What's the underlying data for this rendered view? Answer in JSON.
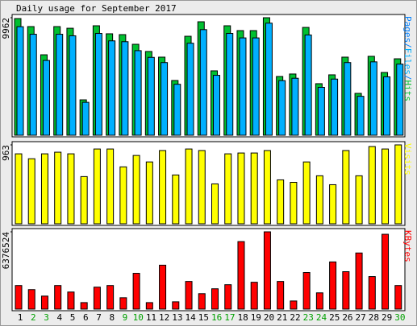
{
  "chart_data": {
    "type": "bar",
    "title": "Daily usage for September 2017",
    "categories": [
      "1",
      "2",
      "3",
      "4",
      "5",
      "6",
      "7",
      "8",
      "9",
      "10",
      "11",
      "12",
      "13",
      "14",
      "15",
      "16",
      "17",
      "18",
      "19",
      "20",
      "21",
      "22",
      "23",
      "24",
      "25",
      "26",
      "27",
      "28",
      "29",
      "30"
    ],
    "category_colors": [
      "#000000",
      "#00a000",
      "#00a000",
      "#000000",
      "#000000",
      "#000000",
      "#000000",
      "#000000",
      "#00a000",
      "#00a000",
      "#000000",
      "#000000",
      "#000000",
      "#000000",
      "#000000",
      "#00a000",
      "#00a000",
      "#000000",
      "#000000",
      "#000000",
      "#000000",
      "#000000",
      "#00a000",
      "#00a000",
      "#000000",
      "#000000",
      "#000000",
      "#000000",
      "#000000",
      "#00a000"
    ],
    "panels": [
      {
        "label_parts": [
          {
            "text": "Pages",
            "color": "#0080ff"
          },
          {
            "text": "/",
            "color": "#0080ff"
          },
          {
            "series": 1
          },
          {
            "text": "/",
            "color": "#0080ff"
          },
          {
            "series": 0
          }
        ],
        "ylim": [
          0,
          9962
        ],
        "yticks": [
          9962
        ],
        "series": [
          {
            "name": "Hits",
            "color": "#00c030",
            "values": [
              9890,
              9210,
              6820,
              9210,
              9070,
              3000,
              9280,
              8600,
              8530,
              7710,
              7100,
              6620,
              4640,
              8390,
              9620,
              5460,
              9280,
              8870,
              8870,
              9962,
              4980,
              5190,
              9140,
              4370,
              5120,
              6620,
              3550,
              6690,
              5320,
              6480
            ]
          },
          {
            "name": "Files",
            "color": "#00b0ff",
            "values": [
              9200,
              8560,
              6340,
              8560,
              8430,
              2790,
              8630,
              8000,
              7930,
              7170,
              6600,
              6160,
              4320,
              7800,
              8950,
              5080,
              8630,
              8250,
              8250,
              9500,
              4630,
              4830,
              8500,
              4060,
              4760,
              6160,
              3300,
              6220,
              4950,
              6030
            ]
          }
        ]
      },
      {
        "label_parts": [
          {
            "series": 0
          }
        ],
        "ylim": [
          0,
          963
        ],
        "yticks": [
          963
        ],
        "series": [
          {
            "name": "Visits",
            "color": "#ffff00",
            "values": [
              854,
              794,
              854,
              874,
              854,
              576,
              913,
              913,
              695,
              834,
              755,
              894,
              596,
              913,
              894,
              487,
              854,
              864,
              864,
              894,
              536,
              506,
              755,
              586,
              477,
              894,
              586,
              943,
              913,
              963
            ]
          }
        ]
      },
      {
        "label_parts": [
          {
            "series": 0
          }
        ],
        "ylim": [
          0,
          6376524
        ],
        "yticks": [
          6376524
        ],
        "series": [
          {
            "name": "KBytes",
            "color": "#ff0000",
            "values": [
              1946500,
              1610900,
              1073900,
              1946500,
              1409500,
              537000,
              1812300,
              1946500,
              939700,
              2953300,
              537000,
              3624500,
              604100,
              2282100,
              1275300,
              1678000,
              2013600,
              5571000,
              2215000,
              6376524,
              2282100,
              671200,
              3020400,
              1342400,
              3893000,
              3087600,
              4631300,
              2684800,
              6175100,
              1946500
            ]
          }
        ]
      }
    ]
  }
}
